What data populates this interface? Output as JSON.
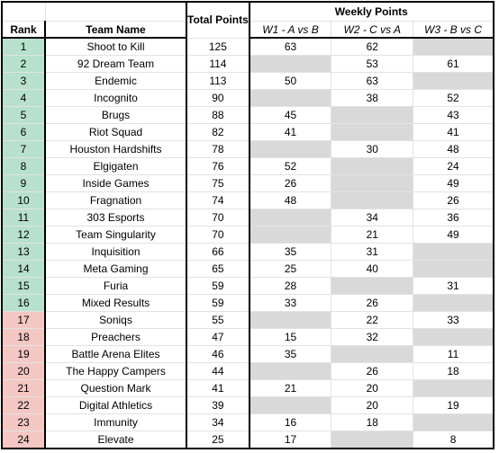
{
  "headers": {
    "rank": "Rank",
    "team_name": "Team Name",
    "total_points": "Total Points",
    "weekly_points": "Weekly Points",
    "weeks": [
      "W1 - A vs B",
      "W2 - C vs A",
      "W3 - B vs C"
    ]
  },
  "colors": {
    "qualified": "#b7e1cd",
    "relegated": "#f4c7c3",
    "bye_week": "#d9d9d9"
  },
  "rows": [
    {
      "rank": "1",
      "team": "Shoot to Kill",
      "total": "125",
      "w1": "63",
      "w2": "62",
      "w3": ""
    },
    {
      "rank": "2",
      "team": "92 Dream Team",
      "total": "114",
      "w1": "",
      "w2": "53",
      "w3": "61"
    },
    {
      "rank": "3",
      "team": "Endemic",
      "total": "113",
      "w1": "50",
      "w2": "63",
      "w3": ""
    },
    {
      "rank": "4",
      "team": "Incognito",
      "total": "90",
      "w1": "",
      "w2": "38",
      "w3": "52"
    },
    {
      "rank": "5",
      "team": "Brugs",
      "total": "88",
      "w1": "45",
      "w2": "",
      "w3": "43"
    },
    {
      "rank": "6",
      "team": "Riot Squad",
      "total": "82",
      "w1": "41",
      "w2": "",
      "w3": "41"
    },
    {
      "rank": "7",
      "team": "Houston Hardshifts",
      "total": "78",
      "w1": "",
      "w2": "30",
      "w3": "48"
    },
    {
      "rank": "8",
      "team": "Elgigaten",
      "total": "76",
      "w1": "52",
      "w2": "",
      "w3": "24"
    },
    {
      "rank": "9",
      "team": "Inside Games",
      "total": "75",
      "w1": "26",
      "w2": "",
      "w3": "49"
    },
    {
      "rank": "10",
      "team": "Fragnation",
      "total": "74",
      "w1": "48",
      "w2": "",
      "w3": "26"
    },
    {
      "rank": "11",
      "team": "303 Esports",
      "total": "70",
      "w1": "",
      "w2": "34",
      "w3": "36"
    },
    {
      "rank": "12",
      "team": "Team Singularity",
      "total": "70",
      "w1": "",
      "w2": "21",
      "w3": "49"
    },
    {
      "rank": "13",
      "team": "Inquisition",
      "total": "66",
      "w1": "35",
      "w2": "31",
      "w3": ""
    },
    {
      "rank": "14",
      "team": "Meta Gaming",
      "total": "65",
      "w1": "25",
      "w2": "40",
      "w3": ""
    },
    {
      "rank": "15",
      "team": "Furia",
      "total": "59",
      "w1": "28",
      "w2": "",
      "w3": "31"
    },
    {
      "rank": "16",
      "team": "Mixed Results",
      "total": "59",
      "w1": "33",
      "w2": "26",
      "w3": ""
    },
    {
      "rank": "17",
      "team": "Soniqs",
      "total": "55",
      "w1": "",
      "w2": "22",
      "w3": "33"
    },
    {
      "rank": "18",
      "team": "Preachers",
      "total": "47",
      "w1": "15",
      "w2": "32",
      "w3": ""
    },
    {
      "rank": "19",
      "team": "Battle Arena Elites",
      "total": "46",
      "w1": "35",
      "w2": "",
      "w3": "11"
    },
    {
      "rank": "20",
      "team": "The Happy Campers",
      "total": "44",
      "w1": "",
      "w2": "26",
      "w3": "18"
    },
    {
      "rank": "21",
      "team": "Question Mark",
      "total": "41",
      "w1": "21",
      "w2": "20",
      "w3": ""
    },
    {
      "rank": "22",
      "team": "Digital Athletics",
      "total": "39",
      "w1": "",
      "w2": "20",
      "w3": "19"
    },
    {
      "rank": "23",
      "team": "Immunity",
      "total": "34",
      "w1": "16",
      "w2": "18",
      "w3": ""
    },
    {
      "rank": "24",
      "team": "Elevate",
      "total": "25",
      "w1": "17",
      "w2": "",
      "w3": "8"
    }
  ]
}
